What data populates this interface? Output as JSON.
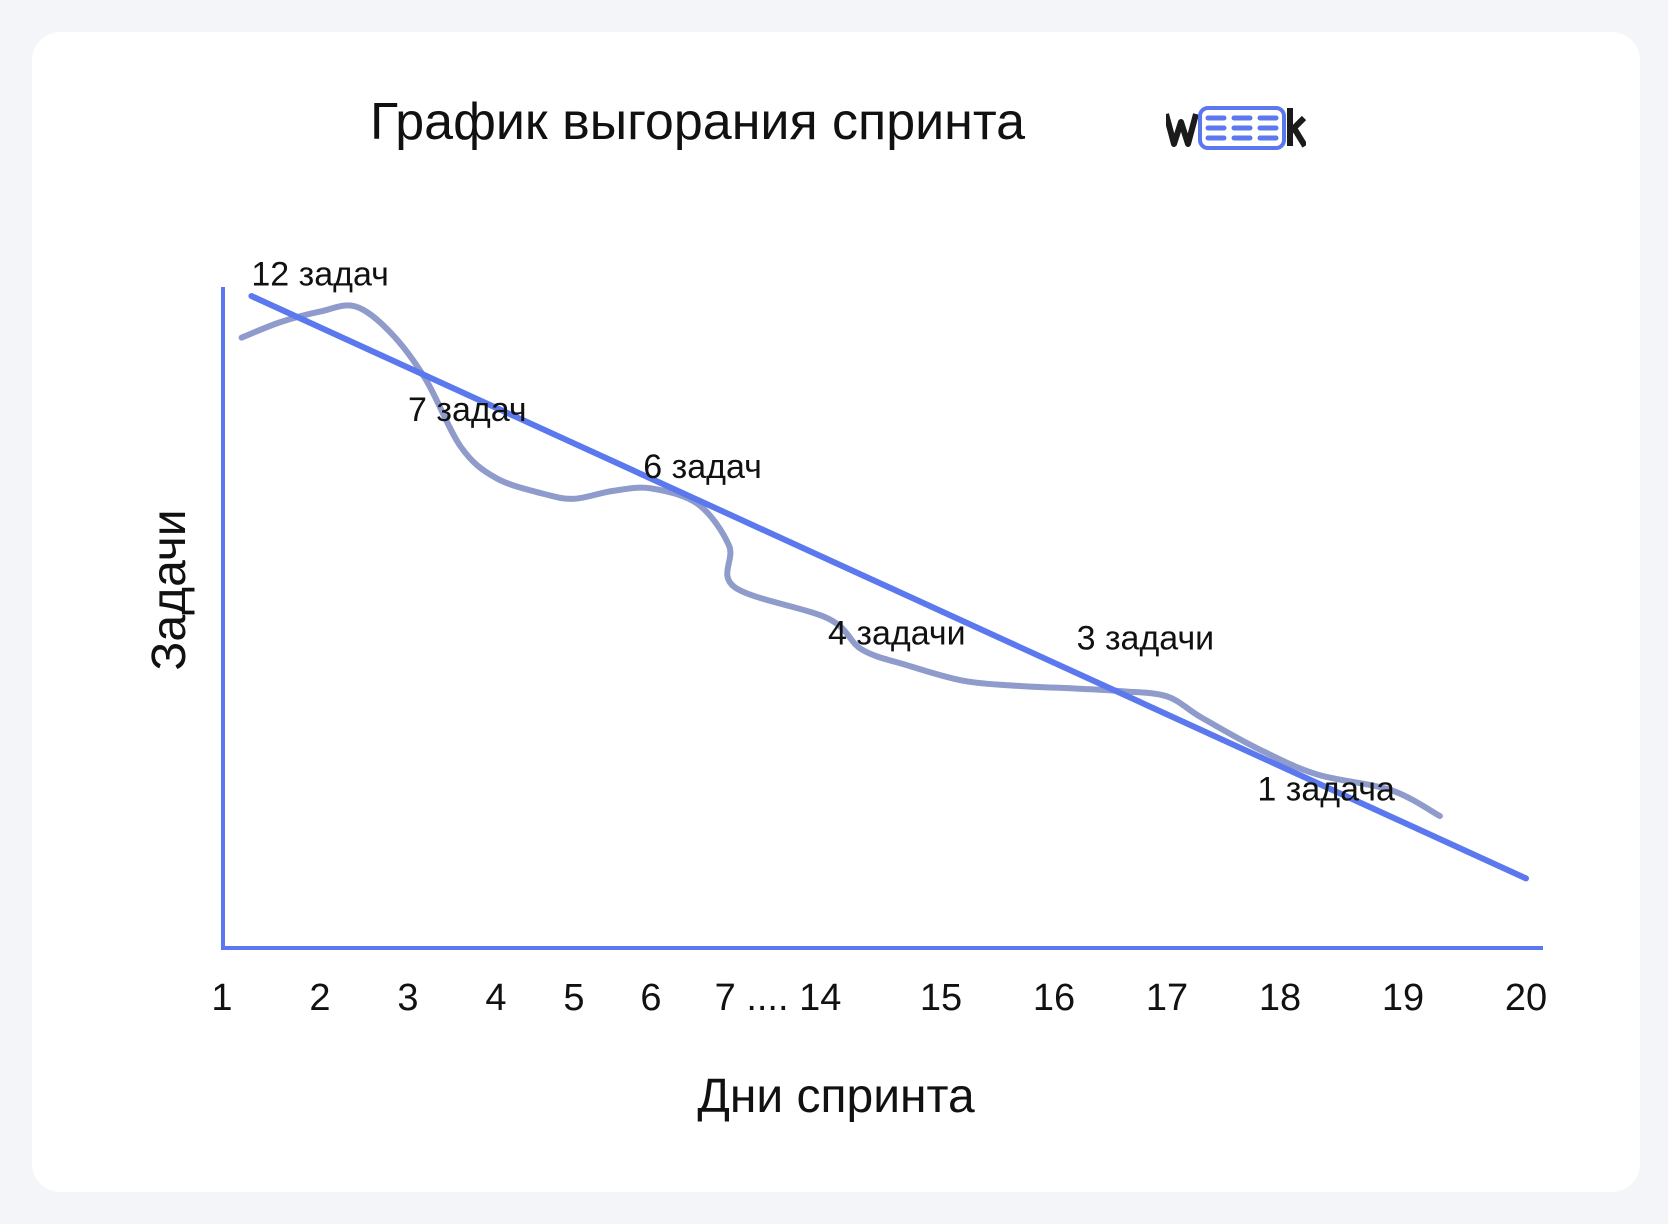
{
  "title": "График выгорания спринта",
  "logo": {
    "text": "weeek",
    "accent": "#5b78ee"
  },
  "colors": {
    "ideal": "#5b78ee",
    "actual": "#8e9bcb",
    "axis": "#5b78ee"
  },
  "chart_data": {
    "type": "line",
    "xlabel": "Дни спринта",
    "ylabel": "Задачи",
    "x_ticks": [
      "1",
      "2",
      "3",
      "4",
      "5",
      "6",
      "7 .... 14",
      "15",
      "16",
      "17",
      "18",
      "19",
      "20"
    ],
    "grid": false,
    "legend": "none",
    "series": [
      {
        "role": "ideal",
        "x": [
          1.3,
          20
        ],
        "y": [
          12,
          0.8
        ]
      },
      {
        "role": "actual",
        "x": [
          1.2,
          1.6,
          2.0,
          2.4,
          2.8,
          3.2,
          3.6,
          4.0,
          4.6,
          5.0,
          5.5,
          6.0,
          6.6,
          7.0,
          7.4,
          14.0,
          14.3,
          14.7,
          15.2,
          15.7,
          16.2,
          16.6,
          17.0,
          17.3,
          17.8,
          18.3,
          18.9,
          19.3
        ],
        "y": [
          11.2,
          11.5,
          11.7,
          11.8,
          11.3,
          10.4,
          9.1,
          8.5,
          8.2,
          8.1,
          8.25,
          8.3,
          8.0,
          7.2,
          6.4,
          5.8,
          5.2,
          4.9,
          4.6,
          4.5,
          4.45,
          4.4,
          4.3,
          3.9,
          3.3,
          2.8,
          2.5,
          2.0
        ]
      }
    ],
    "annotations": [
      {
        "text": "12 задач",
        "x": 1.3,
        "y": 12.2
      },
      {
        "text": "7 задач",
        "x": 3.0,
        "y": 9.6
      },
      {
        "text": "6 задач",
        "x": 5.9,
        "y": 8.5
      },
      {
        "text": "4 задачи",
        "x": 14.0,
        "y": 5.3
      },
      {
        "text": "3 задачи",
        "x": 16.2,
        "y": 5.2
      },
      {
        "text": "1 задача",
        "x": 17.8,
        "y": 2.3
      }
    ]
  }
}
